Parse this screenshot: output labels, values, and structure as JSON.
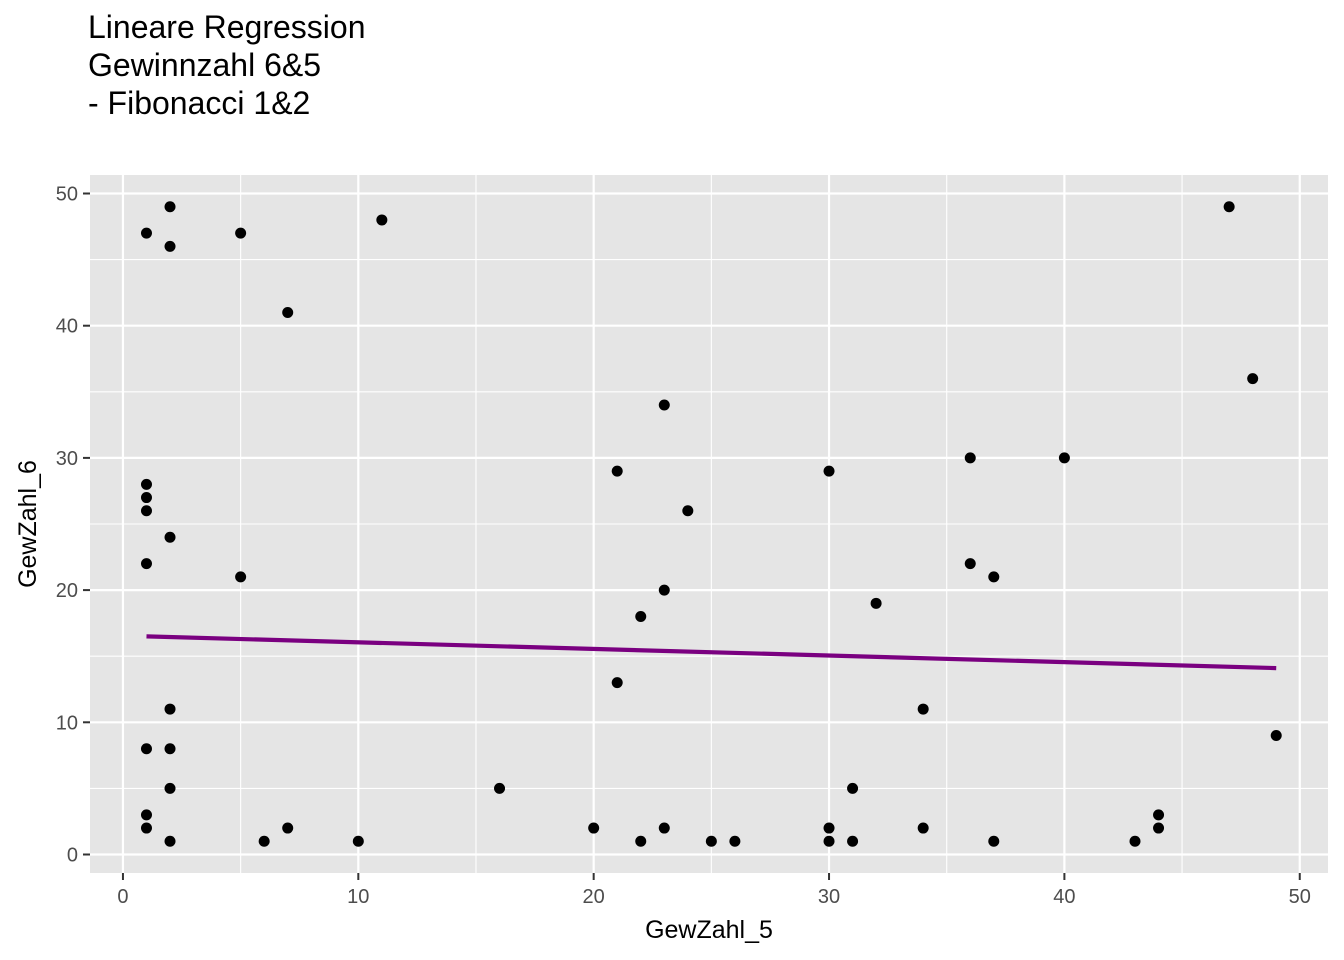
{
  "chart_data": {
    "type": "scatter",
    "title": "Lineare Regression\nGewinnzahl 6&5\n- Fibonacci 1&2",
    "xlabel": "GewZahl_5",
    "ylabel": "GewZahl_6",
    "xlim": [
      -1.4,
      51.2
    ],
    "ylim": [
      -1.4,
      51.4
    ],
    "x_ticks": [
      0,
      10,
      20,
      30,
      40,
      50
    ],
    "y_ticks": [
      0,
      10,
      20,
      30,
      40,
      50
    ],
    "grid": true,
    "panel_background": "#e5e5e5",
    "grid_color": "#ffffff",
    "point_color": "#000000",
    "regression_color": "#7a0080",
    "series": [
      {
        "type": "scatter",
        "points": [
          {
            "x": 1,
            "y": 47
          },
          {
            "x": 1,
            "y": 28
          },
          {
            "x": 1,
            "y": 27
          },
          {
            "x": 1,
            "y": 26
          },
          {
            "x": 1,
            "y": 22
          },
          {
            "x": 1,
            "y": 8
          },
          {
            "x": 1,
            "y": 3
          },
          {
            "x": 1,
            "y": 2
          },
          {
            "x": 2,
            "y": 49
          },
          {
            "x": 2,
            "y": 46
          },
          {
            "x": 2,
            "y": 24
          },
          {
            "x": 2,
            "y": 11
          },
          {
            "x": 2,
            "y": 8
          },
          {
            "x": 2,
            "y": 5
          },
          {
            "x": 2,
            "y": 1
          },
          {
            "x": 5,
            "y": 47
          },
          {
            "x": 5,
            "y": 21
          },
          {
            "x": 6,
            "y": 1
          },
          {
            "x": 7,
            "y": 41
          },
          {
            "x": 7,
            "y": 2
          },
          {
            "x": 10,
            "y": 1
          },
          {
            "x": 11,
            "y": 48
          },
          {
            "x": 16,
            "y": 5
          },
          {
            "x": 20,
            "y": 2
          },
          {
            "x": 21,
            "y": 29
          },
          {
            "x": 21,
            "y": 13
          },
          {
            "x": 22,
            "y": 18
          },
          {
            "x": 22,
            "y": 1
          },
          {
            "x": 23,
            "y": 34
          },
          {
            "x": 23,
            "y": 20
          },
          {
            "x": 23,
            "y": 2
          },
          {
            "x": 24,
            "y": 26
          },
          {
            "x": 25,
            "y": 1
          },
          {
            "x": 26,
            "y": 1
          },
          {
            "x": 30,
            "y": 29
          },
          {
            "x": 30,
            "y": 2
          },
          {
            "x": 30,
            "y": 1
          },
          {
            "x": 31,
            "y": 5
          },
          {
            "x": 31,
            "y": 1
          },
          {
            "x": 32,
            "y": 19
          },
          {
            "x": 34,
            "y": 11
          },
          {
            "x": 34,
            "y": 2
          },
          {
            "x": 36,
            "y": 30
          },
          {
            "x": 36,
            "y": 22
          },
          {
            "x": 37,
            "y": 21
          },
          {
            "x": 37,
            "y": 1
          },
          {
            "x": 40,
            "y": 30
          },
          {
            "x": 43,
            "y": 1
          },
          {
            "x": 44,
            "y": 3
          },
          {
            "x": 44,
            "y": 2
          },
          {
            "x": 47,
            "y": 49
          },
          {
            "x": 48,
            "y": 36
          },
          {
            "x": 49,
            "y": 9
          }
        ]
      },
      {
        "type": "line",
        "role": "regression",
        "points": [
          {
            "x": 1,
            "y": 16.5
          },
          {
            "x": 49,
            "y": 14.1
          }
        ]
      }
    ]
  }
}
